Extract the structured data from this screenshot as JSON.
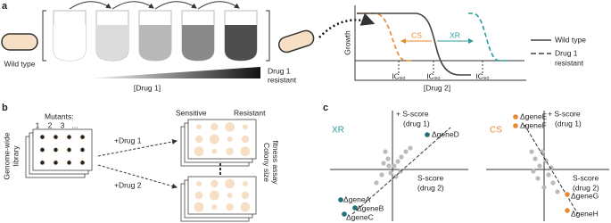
{
  "panels": {
    "a": {
      "label": "a",
      "wild_type": "Wild type",
      "drug1_axis": "[Drug 1]",
      "resistant_lines": [
        "Drug 1",
        "resistant"
      ],
      "plot": {
        "y_label": "Growth",
        "x_label": "[Drug 2]",
        "cs": "CS",
        "xr": "XR",
        "ic_labels": [
          "IC₉₀",
          "IC₉₀",
          "IC₉₀"
        ],
        "legend_wild_type": "Wild type",
        "legend_resistant": [
          "Drug 1",
          "resistant"
        ]
      }
    },
    "b": {
      "label": "b",
      "library": [
        "Genome-wide",
        "library"
      ],
      "mutants": "Mutants:",
      "mutant_numbers": [
        "1",
        "2",
        "3",
        "..."
      ],
      "drug1": "+Drug 1",
      "drug2": "+Drug 2",
      "sensitive": "Sensitive",
      "resistant": "Resistant",
      "assay": [
        "Colony size",
        "fitness assay"
      ]
    },
    "c": {
      "label": "c",
      "xr_plot": {
        "title": "XR",
        "y_label": [
          "+ S-score",
          "(drug 1)"
        ],
        "x_label": [
          "S-score",
          "(drug 2)"
        ],
        "genes": [
          "ΔgeneD",
          "ΔgeneA",
          "ΔgeneB",
          "ΔgeneC"
        ]
      },
      "cs_plot": {
        "title": "CS",
        "y_label": [
          "+ S-score",
          "(drug 1)"
        ],
        "x_label": [
          "S-score",
          "(drug 2)"
        ],
        "genes": [
          "ΔgeneE",
          "ΔgeneF",
          "ΔgeneG",
          "ΔgeneH"
        ]
      }
    }
  }
}
